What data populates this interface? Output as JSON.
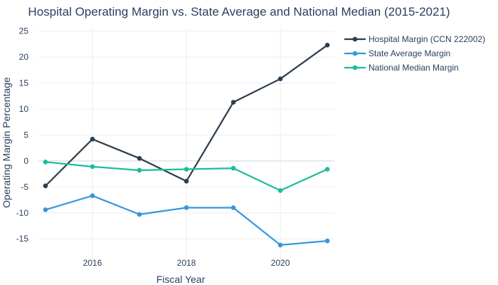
{
  "chart_data": {
    "type": "line",
    "title": "Hospital Operating Margin vs. State Average and National Median (2015-2021)",
    "xlabel": "Fiscal Year",
    "ylabel": "Operating Margin Percentage",
    "x": [
      2015,
      2016,
      2017,
      2018,
      2019,
      2020,
      2021
    ],
    "xlim": [
      2014.85,
      2021.15
    ],
    "ylim": [
      -19.5,
      25.5
    ],
    "xticks": [
      2016,
      2018,
      2020
    ],
    "yticks": [
      -15,
      -10,
      -5,
      0,
      5,
      10,
      15,
      20,
      25
    ],
    "grid": true,
    "legend_position": "top-right outside",
    "series": [
      {
        "name": "Hospital Margin (CCN 222002)",
        "color": "#2c3e50",
        "values": [
          -4.8,
          4.2,
          0.5,
          -3.9,
          11.3,
          15.8,
          22.3
        ]
      },
      {
        "name": "State Average Margin",
        "color": "#3498db",
        "values": [
          -9.4,
          -6.7,
          -10.3,
          -9.0,
          -9.0,
          -16.2,
          -15.4
        ]
      },
      {
        "name": "National Median Margin",
        "color": "#1abc9c",
        "values": [
          -0.2,
          -1.1,
          -1.8,
          -1.6,
          -1.4,
          -5.7,
          -1.6
        ]
      }
    ]
  }
}
